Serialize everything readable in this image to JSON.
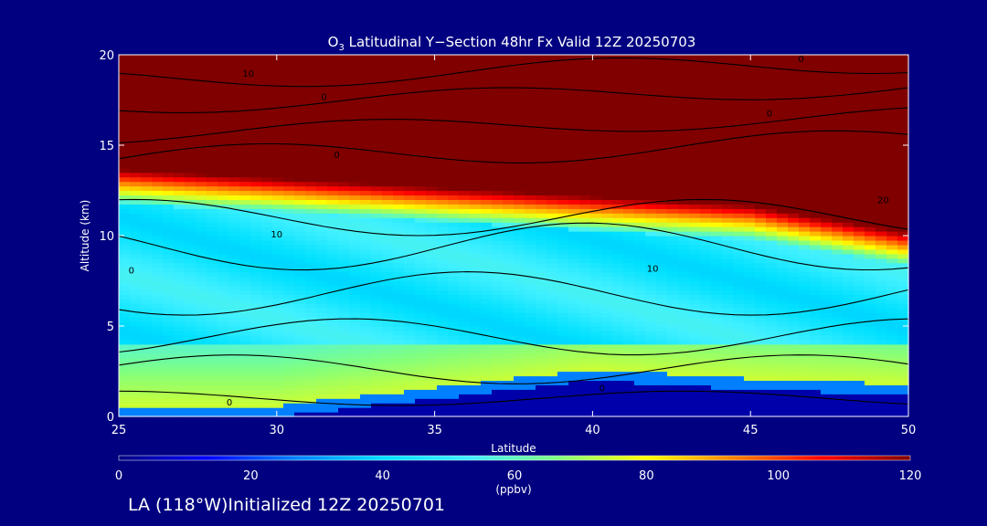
{
  "chart_data": {
    "type": "heatmap",
    "title_main": "O",
    "title_sub": "3",
    "title_rest": " Latitudinal Y−Section 48hr  Fx Valid 12Z 20250703",
    "xlabel": "Latitude",
    "ylabel": "Altitude (km)",
    "xlim": [
      25,
      50
    ],
    "ylim": [
      0,
      20
    ],
    "x_ticks": [
      25,
      30,
      35,
      40,
      45,
      50
    ],
    "y_ticks": [
      0,
      5,
      10,
      15,
      20
    ],
    "colorbar": {
      "label": "(ppbv)",
      "range": [
        0,
        120
      ],
      "ticks": [
        0,
        20,
        40,
        60,
        80,
        100,
        120
      ],
      "colors": [
        "#000080",
        "#0000ff",
        "#0080ff",
        "#00e0ff",
        "#40f0ff",
        "#80ff80",
        "#ffff00",
        "#ff8000",
        "#ff0000",
        "#800000"
      ]
    },
    "approx_profile_ppbv": {
      "latitudes": [
        25,
        30,
        35,
        40,
        45,
        50
      ],
      "surface_top_km": [
        0.0,
        0.0,
        1.0,
        2.0,
        1.5,
        1.2
      ],
      "lower_trop_ppbv": 75,
      "mid_trop_ppbv": 50,
      "tropopause_km": [
        13.0,
        12.5,
        12.0,
        11.5,
        11.0,
        9.5
      ],
      "stratosphere_ppbv": 120
    },
    "contour_labels": [
      {
        "text": "10",
        "lat": 29.1,
        "alt": 18.8
      },
      {
        "text": "0",
        "lat": 31.5,
        "alt": 17.5
      },
      {
        "text": "0",
        "lat": 46.6,
        "alt": 19.6
      },
      {
        "text": "0",
        "lat": 31.9,
        "alt": 14.3
      },
      {
        "text": "0",
        "lat": 45.6,
        "alt": 16.6
      },
      {
        "text": "20",
        "lat": 49.2,
        "alt": 11.8
      },
      {
        "text": "10",
        "lat": 30.0,
        "alt": 9.9
      },
      {
        "text": "0",
        "lat": 25.4,
        "alt": 7.9
      },
      {
        "text": "10",
        "lat": 41.9,
        "alt": 8.0
      },
      {
        "text": "0",
        "lat": 28.5,
        "alt": 0.6
      },
      {
        "text": "0",
        "lat": 40.3,
        "alt": 1.4
      }
    ]
  },
  "footer": "LA (118°W)Initialized 12Z 20250701"
}
